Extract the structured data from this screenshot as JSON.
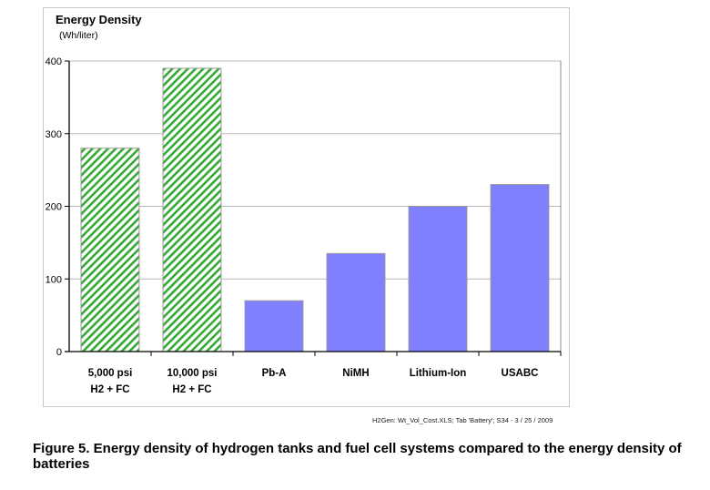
{
  "chart_data": {
    "type": "bar",
    "title": "Energy Density",
    "subtitle": "(Wh/liter)",
    "xlabel": "",
    "ylabel": "Wh/liter",
    "ylim": [
      0,
      400
    ],
    "yticks": [
      0,
      100,
      200,
      300,
      400
    ],
    "grid": true,
    "legend": "none",
    "categories": [
      [
        "5,000 psi",
        "H2 + FC"
      ],
      [
        "10,000 psi",
        "H2 + FC"
      ],
      [
        "Pb-A"
      ],
      [
        "NiMH"
      ],
      [
        "Lithium-Ion"
      ],
      [
        "USABC"
      ]
    ],
    "values": [
      280,
      390,
      70,
      135,
      200,
      230
    ],
    "bar_styles": [
      "hatched-green",
      "hatched-green",
      "solid-blue",
      "solid-blue",
      "solid-blue",
      "solid-blue"
    ],
    "colors": {
      "hatch": "#33aa33",
      "solid": "#8080ff",
      "bar_edge": "#999999",
      "grid": "#b8b8b8"
    }
  },
  "source_note": "H2Gen: Wt_Vol_Cost.XLS; Tab 'Battery'; S34 -  3 / 25 / 2009",
  "caption": "Figure 5. Energy density of hydrogen tanks and fuel cell systems compared to the energy density of batteries"
}
